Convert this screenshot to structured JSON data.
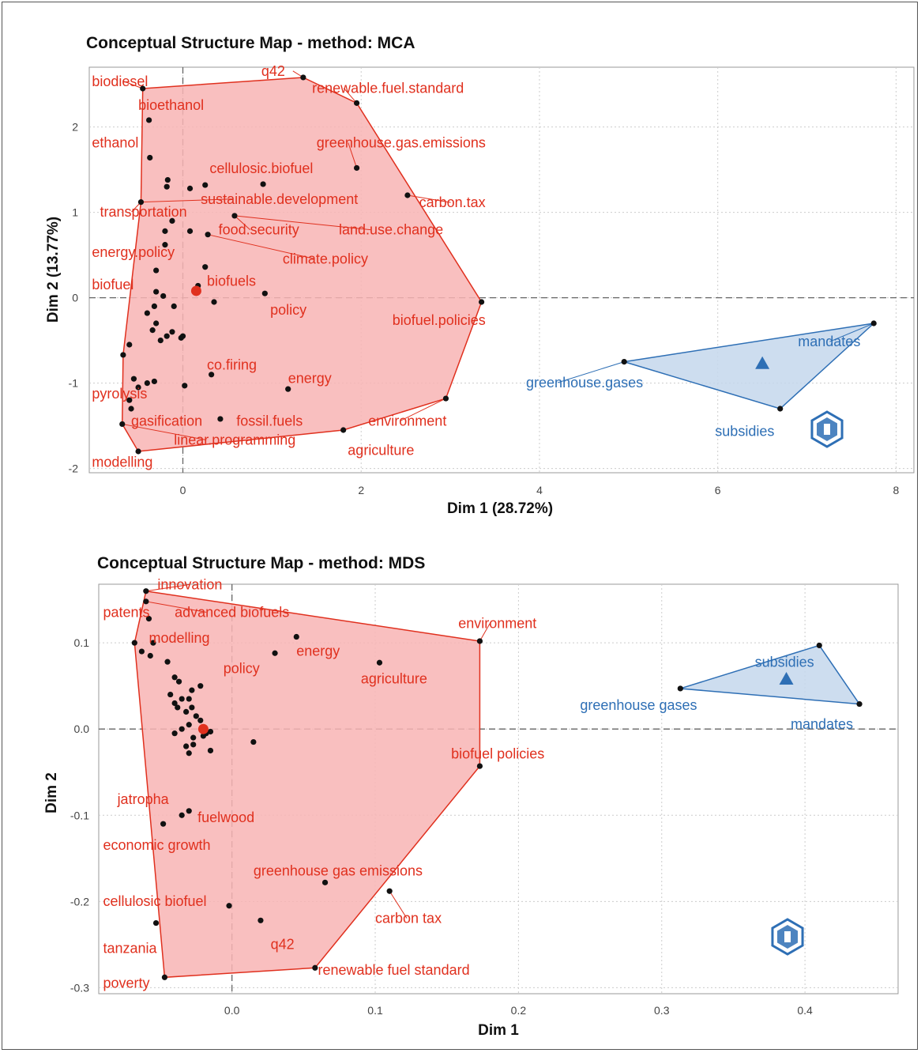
{
  "colors": {
    "red": "#e0301e",
    "red_fill": "#f8b4b4",
    "blue": "#2e6fb5",
    "blue_fill": "#c4d7ec",
    "point": "#111111",
    "grid": "#cccccc"
  },
  "logo_icon": "scholar-badge-icon",
  "chart_data": [
    {
      "type": "scatter",
      "title": "Conceptual Structure Map - method: MCA",
      "xlabel": "Dim 1 (28.72%)",
      "ylabel": "Dim 2 (13.77%)",
      "xlim": [
        -1.05,
        8.2
      ],
      "ylim": [
        -2.05,
        2.7
      ],
      "xticks": [
        0,
        2,
        4,
        6,
        8
      ],
      "yticks": [
        -2,
        -1,
        0,
        1,
        2
      ],
      "grid": true,
      "clusters": [
        {
          "color": "red",
          "centroid": [
            0.15,
            0.08
          ],
          "hull": [
            [
              -0.45,
              2.45
            ],
            [
              1.35,
              2.58
            ],
            [
              1.95,
              2.28
            ],
            [
              3.35,
              -0.05
            ],
            [
              2.95,
              -1.18
            ],
            [
              1.8,
              -1.55
            ],
            [
              -0.5,
              -1.8
            ],
            [
              -0.68,
              -1.48
            ],
            [
              -0.67,
              -0.67
            ],
            [
              -0.47,
              1.12
            ]
          ],
          "points": [
            [
              -0.45,
              2.45
            ],
            [
              1.35,
              2.58
            ],
            [
              1.95,
              2.28
            ],
            [
              3.35,
              -0.05
            ],
            [
              2.95,
              -1.18
            ],
            [
              1.8,
              -1.55
            ],
            [
              -0.5,
              -1.8
            ],
            [
              -0.68,
              -1.48
            ],
            [
              -0.67,
              -0.67
            ],
            [
              -0.47,
              1.12
            ],
            [
              -0.38,
              2.08
            ],
            [
              -0.37,
              1.64
            ],
            [
              -0.17,
              1.38
            ],
            [
              -0.18,
              1.3
            ],
            [
              0.08,
              1.28
            ],
            [
              0.25,
              1.32
            ],
            [
              0.9,
              1.33
            ],
            [
              1.95,
              1.52
            ],
            [
              2.52,
              1.2
            ],
            [
              -0.2,
              0.78
            ],
            [
              -0.12,
              0.9
            ],
            [
              0.08,
              0.78
            ],
            [
              0.28,
              0.74
            ],
            [
              0.58,
              0.96
            ],
            [
              0.25,
              0.36
            ],
            [
              -0.2,
              0.62
            ],
            [
              -0.3,
              0.32
            ],
            [
              0.17,
              0.14
            ],
            [
              0.35,
              -0.05
            ],
            [
              0.92,
              0.05
            ],
            [
              -0.3,
              0.07
            ],
            [
              -0.22,
              0.02
            ],
            [
              -0.32,
              -0.1
            ],
            [
              -0.4,
              -0.18
            ],
            [
              -0.3,
              -0.3
            ],
            [
              -0.34,
              -0.38
            ],
            [
              -0.25,
              -0.5
            ],
            [
              -0.18,
              -0.45
            ],
            [
              -0.12,
              -0.4
            ],
            [
              -0.02,
              -0.47
            ],
            [
              -0.6,
              -0.55
            ],
            [
              -0.55,
              -0.95
            ],
            [
              -0.4,
              -1.0
            ],
            [
              -0.32,
              -0.98
            ],
            [
              -0.5,
              -1.05
            ],
            [
              -0.6,
              -1.2
            ],
            [
              -0.58,
              -1.3
            ],
            [
              0.02,
              -1.03
            ],
            [
              0.32,
              -0.9
            ],
            [
              0.42,
              -1.42
            ],
            [
              1.18,
              -1.07
            ],
            [
              0.0,
              -0.45
            ],
            [
              -0.1,
              -0.1
            ]
          ],
          "labels": [
            {
              "text": "biodiesel",
              "x": -1.02,
              "y": 2.48,
              "lx": -0.45,
              "ly": 2.45
            },
            {
              "text": "q42",
              "x": 0.88,
              "y": 2.6,
              "lx": 1.35,
              "ly": 2.58
            },
            {
              "text": "renewable.fuel.standard",
              "x": 1.45,
              "y": 2.4,
              "lx": 1.95,
              "ly": 2.28
            },
            {
              "text": "bioethanol",
              "x": -0.5,
              "y": 2.2
            },
            {
              "text": "ethanol",
              "x": -1.02,
              "y": 1.76
            },
            {
              "text": "greenhouse.gas.emissions",
              "x": 1.5,
              "y": 1.76,
              "lx": 1.95,
              "ly": 1.52
            },
            {
              "text": "cellulosic.biofuel",
              "x": 0.3,
              "y": 1.46
            },
            {
              "text": "sustainable.development",
              "x": 0.2,
              "y": 1.1,
              "lx": -0.47,
              "ly": 1.12
            },
            {
              "text": "carbon.tax",
              "x": 2.65,
              "y": 1.06,
              "lx": 2.52,
              "ly": 1.2
            },
            {
              "text": "transportation",
              "x": -0.93,
              "y": 0.95,
              "lx": -0.47,
              "ly": 1.12
            },
            {
              "text": "food.security",
              "x": 0.4,
              "y": 0.74,
              "lx": 0.58,
              "ly": 0.96
            },
            {
              "text": "land.use.change",
              "x": 1.75,
              "y": 0.74,
              "lx": 0.58,
              "ly": 0.96
            },
            {
              "text": "energy.policy",
              "x": -1.02,
              "y": 0.48
            },
            {
              "text": "climate.policy",
              "x": 1.12,
              "y": 0.4,
              "lx": 0.28,
              "ly": 0.74
            },
            {
              "text": "biofuel",
              "x": -1.02,
              "y": 0.1
            },
            {
              "text": "biofuels",
              "x": 0.27,
              "y": 0.14
            },
            {
              "text": "policy",
              "x": 0.98,
              "y": -0.2
            },
            {
              "text": "biofuel.policies",
              "x": 2.35,
              "y": -0.32
            },
            {
              "text": "co.firing",
              "x": 0.27,
              "y": -0.84
            },
            {
              "text": "energy",
              "x": 1.18,
              "y": -1.0
            },
            {
              "text": "pyrolysis",
              "x": -1.02,
              "y": -1.18
            },
            {
              "text": "gasification",
              "x": -0.58,
              "y": -1.5
            },
            {
              "text": "fossil.fuels",
              "x": 0.6,
              "y": -1.5
            },
            {
              "text": "environment",
              "x": 2.08,
              "y": -1.5,
              "lx": 2.95,
              "ly": -1.18
            },
            {
              "text": "linear.programming",
              "x": -0.1,
              "y": -1.72,
              "lx": -0.68,
              "ly": -1.48
            },
            {
              "text": "agriculture",
              "x": 1.85,
              "y": -1.84
            },
            {
              "text": "modelling",
              "x": -1.02,
              "y": -1.98
            }
          ]
        },
        {
          "color": "blue",
          "centroid": [
            6.5,
            -0.77
          ],
          "hull": [
            [
              4.95,
              -0.75
            ],
            [
              7.75,
              -0.3
            ],
            [
              6.7,
              -1.3
            ]
          ],
          "points": [
            [
              4.95,
              -0.75
            ],
            [
              7.75,
              -0.3
            ],
            [
              6.7,
              -1.3
            ]
          ],
          "labels": [
            {
              "text": "mandates",
              "x": 6.9,
              "y": -0.57,
              "lx": 7.75,
              "ly": -0.3
            },
            {
              "text": "greenhouse.gases",
              "x": 3.85,
              "y": -1.05,
              "lx": 4.95,
              "ly": -0.75
            },
            {
              "text": "subsidies",
              "x": 5.97,
              "y": -1.62
            }
          ]
        }
      ]
    },
    {
      "type": "scatter",
      "title": "Conceptual Structure Map - method: MDS",
      "xlabel": "Dim 1",
      "ylabel": "Dim 2",
      "xlim": [
        -0.093,
        0.465
      ],
      "ylim": [
        -0.307,
        0.168
      ],
      "xticks": [
        0.0,
        0.1,
        0.2,
        0.3,
        0.4
      ],
      "yticks": [
        -0.3,
        -0.2,
        -0.1,
        0.0,
        0.1
      ],
      "grid": true,
      "clusters": [
        {
          "color": "red",
          "centroid": [
            -0.02,
            0.0
          ],
          "hull": [
            [
              -0.06,
              0.16
            ],
            [
              0.173,
              0.102
            ],
            [
              0.173,
              -0.043
            ],
            [
              0.058,
              -0.277
            ],
            [
              -0.047,
              -0.288
            ],
            [
              -0.068,
              0.1
            ]
          ],
          "points": [
            [
              -0.06,
              0.16
            ],
            [
              0.173,
              0.102
            ],
            [
              0.173,
              -0.043
            ],
            [
              0.058,
              -0.277
            ],
            [
              -0.047,
              -0.288
            ],
            [
              -0.068,
              0.1
            ],
            [
              -0.06,
              0.148
            ],
            [
              -0.058,
              0.128
            ],
            [
              -0.055,
              0.1
            ],
            [
              -0.057,
              0.085
            ],
            [
              -0.063,
              0.09
            ],
            [
              -0.045,
              0.078
            ],
            [
              0.045,
              0.107
            ],
            [
              0.03,
              0.088
            ],
            [
              0.103,
              0.077
            ],
            [
              -0.04,
              0.06
            ],
            [
              -0.037,
              0.055
            ],
            [
              -0.022,
              0.05
            ],
            [
              -0.043,
              0.04
            ],
            [
              -0.035,
              0.035
            ],
            [
              -0.03,
              0.035
            ],
            [
              -0.028,
              0.025
            ],
            [
              -0.038,
              0.025
            ],
            [
              -0.032,
              0.02
            ],
            [
              -0.025,
              0.015
            ],
            [
              -0.03,
              0.005
            ],
            [
              -0.035,
              0.0
            ],
            [
              -0.04,
              -0.005
            ],
            [
              -0.027,
              -0.01
            ],
            [
              -0.02,
              -0.008
            ],
            [
              -0.015,
              -0.003
            ],
            [
              -0.032,
              -0.02
            ],
            [
              -0.03,
              -0.028
            ],
            [
              -0.027,
              -0.018
            ],
            [
              -0.015,
              -0.025
            ],
            [
              -0.018,
              -0.005
            ],
            [
              0.015,
              -0.015
            ],
            [
              -0.03,
              -0.095
            ],
            [
              -0.035,
              -0.1
            ],
            [
              -0.048,
              -0.11
            ],
            [
              0.065,
              -0.178
            ],
            [
              0.11,
              -0.188
            ],
            [
              -0.002,
              -0.205
            ],
            [
              0.02,
              -0.222
            ],
            [
              -0.053,
              -0.225
            ],
            [
              -0.022,
              0.01
            ],
            [
              -0.04,
              0.03
            ],
            [
              -0.028,
              0.045
            ]
          ],
          "labels": [
            {
              "text": "innovation",
              "x": -0.052,
              "y": 0.162,
              "lx": -0.06,
              "ly": 0.16
            },
            {
              "text": "patents",
              "x": -0.09,
              "y": 0.13
            },
            {
              "text": "advanced biofuels",
              "x": -0.04,
              "y": 0.13,
              "lx": -0.06,
              "ly": 0.148
            },
            {
              "text": "modelling",
              "x": -0.058,
              "y": 0.1
            },
            {
              "text": "environment",
              "x": 0.158,
              "y": 0.117,
              "lx": 0.173,
              "ly": 0.102
            },
            {
              "text": "energy",
              "x": 0.045,
              "y": 0.085
            },
            {
              "text": "policy",
              "x": -0.006,
              "y": 0.065
            },
            {
              "text": "agriculture",
              "x": 0.09,
              "y": 0.053
            },
            {
              "text": "biofuel policies",
              "x": 0.153,
              "y": -0.034
            },
            {
              "text": "jatropha",
              "x": -0.08,
              "y": -0.087
            },
            {
              "text": "fuelwood",
              "x": -0.024,
              "y": -0.108
            },
            {
              "text": "economic growth",
              "x": -0.09,
              "y": -0.14
            },
            {
              "text": "greenhouse gas emissions",
              "x": 0.015,
              "y": -0.17
            },
            {
              "text": "cellulosic biofuel",
              "x": -0.09,
              "y": -0.205
            },
            {
              "text": "carbon tax",
              "x": 0.1,
              "y": -0.225,
              "lx": 0.11,
              "ly": -0.188
            },
            {
              "text": "tanzania",
              "x": -0.09,
              "y": -0.26
            },
            {
              "text": "q42",
              "x": 0.027,
              "y": -0.255
            },
            {
              "text": "renewable fuel standard",
              "x": 0.06,
              "y": -0.285
            },
            {
              "text": "poverty",
              "x": -0.09,
              "y": -0.3
            }
          ]
        },
        {
          "color": "blue",
          "centroid": [
            0.387,
            0.058
          ],
          "hull": [
            [
              0.313,
              0.047
            ],
            [
              0.41,
              0.097
            ],
            [
              0.438,
              0.029
            ]
          ],
          "points": [
            [
              0.313,
              0.047
            ],
            [
              0.41,
              0.097
            ],
            [
              0.438,
              0.029
            ]
          ],
          "labels": [
            {
              "text": "subsidies",
              "x": 0.365,
              "y": 0.072
            },
            {
              "text": "greenhouse gases",
              "x": 0.243,
              "y": 0.022
            },
            {
              "text": "mandates",
              "x": 0.39,
              "y": 0.0
            }
          ]
        }
      ]
    }
  ]
}
